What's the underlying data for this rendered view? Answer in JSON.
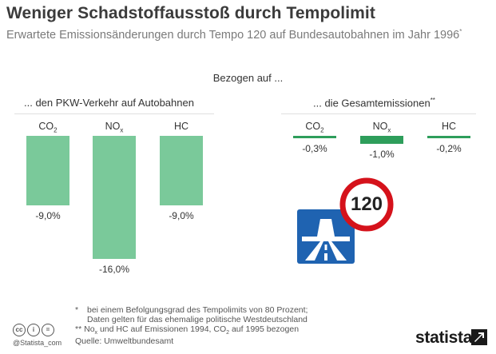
{
  "header": {
    "title": "Weniger Schadstoffausstoß durch Tempolimit",
    "subtitle": "Erwartete Emissionsänderungen durch Tempo 120 auf Bundesautobahnen im Jahr 1996",
    "subtitle_mark": "*"
  },
  "bezogen_label": "Bezogen auf ...",
  "panels": {
    "left_title": "... den PKW-Verkehr auf Autobahnen",
    "right_title": "... die Gesamtemissionen",
    "right_mark": "**"
  },
  "chart_data": [
    {
      "type": "bar",
      "title": "... den PKW-Verkehr auf Autobahnen",
      "categories": [
        "CO2",
        "NOx",
        "HC"
      ],
      "category_display": [
        {
          "main": "CO",
          "sub": "2"
        },
        {
          "main": "NO",
          "sub": "x"
        },
        {
          "main": "HC",
          "sub": ""
        }
      ],
      "values": [
        -9.0,
        -16.0,
        -9.0
      ],
      "value_labels": [
        "-9,0%",
        "-16,0%",
        "-9,0%"
      ],
      "ylim": [
        -16,
        0
      ],
      "color": "#7ac99a"
    },
    {
      "type": "bar",
      "title": "... die Gesamtemissionen",
      "categories": [
        "CO2",
        "NOx",
        "HC"
      ],
      "category_display": [
        {
          "main": "CO",
          "sub": "2"
        },
        {
          "main": "NO",
          "sub": "x"
        },
        {
          "main": "HC",
          "sub": ""
        }
      ],
      "values": [
        -0.3,
        -1.0,
        -0.2
      ],
      "value_labels": [
        "-0,3%",
        "-1,0%",
        "-0,2%"
      ],
      "ylim": [
        -16,
        0
      ],
      "color": "#2e9e5b"
    }
  ],
  "signs": {
    "speed_limit": "120",
    "autobahn_sign_icon": "autobahn-icon",
    "ring_color": "#d5121b",
    "autobahn_blue": "#1f63b1"
  },
  "footnotes": {
    "line1_mark": "*",
    "line1": "bei einem Befolgungsgrad des Tempolimits von 80 Prozent;",
    "line2": "Daten gelten für das ehemalige politische Westdeutschland",
    "line3_mark": "**",
    "line3_a": "No",
    "line3_sub1": "x",
    "line3_b": "und HC auf Emissionen 1994, CO",
    "line3_sub2": "2",
    "line3_c": "auf 1995 bezogen",
    "source": "Quelle: Umweltbundesamt"
  },
  "branding": {
    "license_icons": [
      "cc-icon",
      "by-icon",
      "equal-icon"
    ],
    "handle": "@Statista_com",
    "logo_text": "statista",
    "logo_icon": "statista-arrow-icon"
  }
}
